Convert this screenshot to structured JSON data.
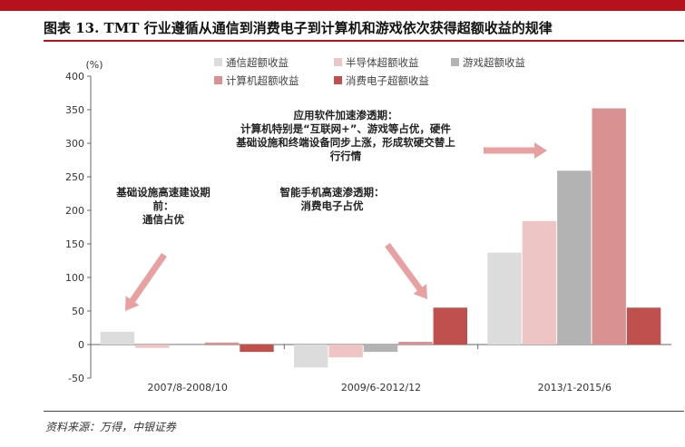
{
  "header": {
    "title": "图表 13. TMT 行业遵循从通信到消费电子到计算机和游戏依次获得超额收益的规律"
  },
  "footer": {
    "source": "资料来源：万得，中银证券"
  },
  "colors": {
    "accent": "#b5121b"
  },
  "chart_data": {
    "type": "bar",
    "y_unit": "(%)",
    "ylim": [
      -50,
      400
    ],
    "yticks": [
      -50,
      0,
      50,
      100,
      150,
      200,
      250,
      300,
      350,
      400
    ],
    "grid": false,
    "legend_position": "top",
    "categories": [
      "2007/8-2008/10",
      "2009/6-2012/12",
      "2013/1-2015/6"
    ],
    "series": [
      {
        "name": "通信超额收益",
        "color": "#dcdcdc",
        "values": [
          19,
          -34,
          137
        ]
      },
      {
        "name": "半导体超额收益",
        "color": "#eec4c4",
        "values": [
          -5,
          -19,
          184
        ]
      },
      {
        "name": "游戏超额收益",
        "color": "#b3b3b3",
        "values": [
          0,
          -11,
          259
        ]
      },
      {
        "name": "计算机超额收益",
        "color": "#d99191",
        "values": [
          3,
          4,
          352
        ]
      },
      {
        "name": "消费电子超额收益",
        "color": "#c0504d",
        "values": [
          -11,
          55,
          55
        ]
      }
    ],
    "annotations": [
      {
        "lines": [
          "基础设施高速建设期",
          "前：",
          "通信占优"
        ]
      },
      {
        "lines": [
          "智能手机高速渗透期：",
          "消费电子占优"
        ]
      },
      {
        "lines": [
          "应用软件加速渗透期：",
          "计算机特别是“互联网+”、游戏等占优，硬件",
          "基础设施和终端设备同步上涨，形成软硬交替上",
          "行行情"
        ]
      }
    ]
  }
}
